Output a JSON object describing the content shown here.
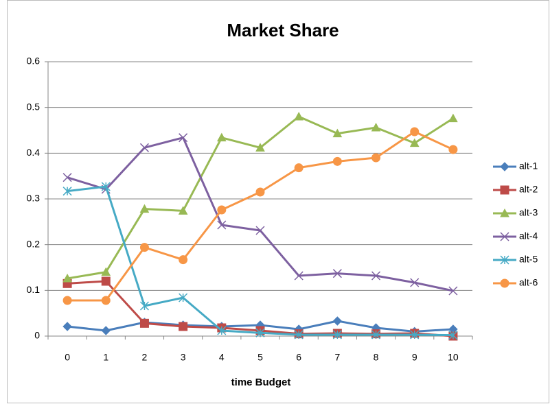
{
  "chart_data": {
    "type": "line",
    "title": "Market Share",
    "x_label": "time Budget",
    "categories": [
      "0",
      "1",
      "2",
      "3",
      "4",
      "5",
      "6",
      "7",
      "8",
      "9",
      "10"
    ],
    "ylim": [
      0,
      0.6
    ],
    "yticks": [
      0,
      0.1,
      0.2,
      0.3,
      0.4,
      0.5,
      0.6
    ],
    "grid": true,
    "legend": "right",
    "series": [
      {
        "name": "alt-1",
        "color": "#4a7ebb",
        "marker": "diamond",
        "values": [
          0.021,
          0.012,
          0.03,
          0.024,
          0.021,
          0.024,
          0.015,
          0.033,
          0.018,
          0.01,
          0.015
        ]
      },
      {
        "name": "alt-2",
        "color": "#be4b48",
        "marker": "square",
        "values": [
          0.115,
          0.12,
          0.028,
          0.021,
          0.018,
          0.012,
          0.005,
          0.006,
          0.005,
          0.006,
          0
        ]
      },
      {
        "name": "alt-3",
        "color": "#98b954",
        "marker": "triangle",
        "values": [
          0.126,
          0.14,
          0.278,
          0.274,
          0.434,
          0.412,
          0.48,
          0.443,
          0.456,
          0.422,
          0.476
        ]
      },
      {
        "name": "alt-4",
        "color": "#7d60a0",
        "marker": "x",
        "values": [
          0.347,
          0.321,
          0.412,
          0.434,
          0.243,
          0.231,
          0.132,
          0.137,
          0.132,
          0.117,
          0.099
        ]
      },
      {
        "name": "alt-5",
        "color": "#46aac5",
        "marker": "star",
        "values": [
          0.317,
          0.327,
          0.066,
          0.084,
          0.012,
          0.007,
          0.003,
          0.003,
          0.003,
          0.003,
          0.002
        ]
      },
      {
        "name": "alt-6",
        "color": "#f79646",
        "marker": "circle",
        "values": [
          0.078,
          0.078,
          0.194,
          0.167,
          0.276,
          0.315,
          0.368,
          0.382,
          0.39,
          0.447,
          0.408
        ]
      }
    ]
  }
}
